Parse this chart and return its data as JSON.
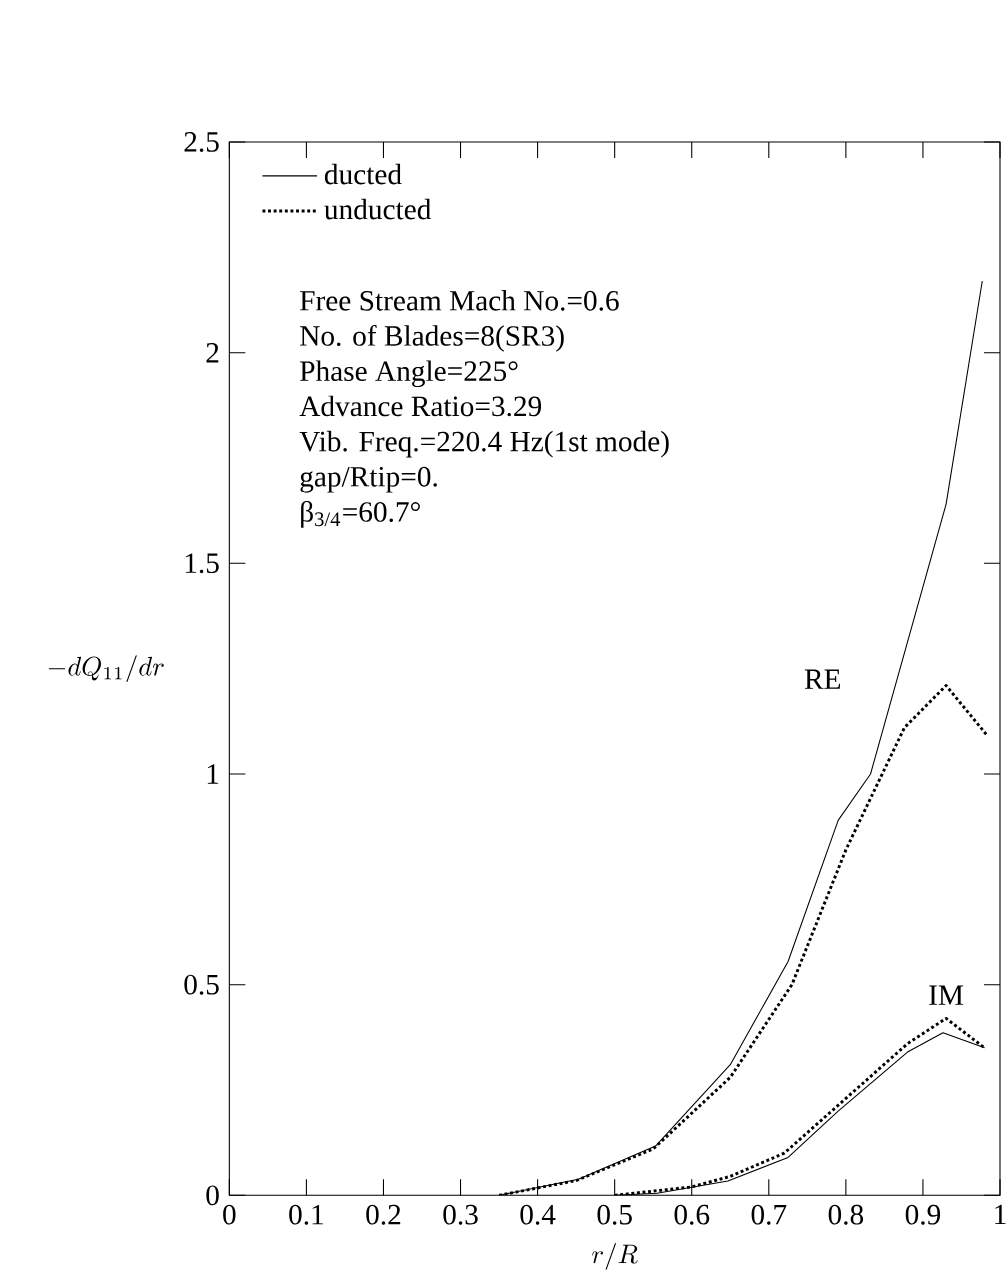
{
  "chart_data": {
    "type": "line",
    "xlabel": "r/R",
    "ylabel": "-dQ_{11}/dr",
    "xlim": [
      0,
      1
    ],
    "xticks": [
      0,
      0.1,
      0.2,
      0.3,
      0.4,
      0.5,
      0.6,
      0.7,
      0.8,
      0.9,
      1
    ],
    "ylim": [
      0,
      2.5
    ],
    "yticks": [
      0,
      0.5,
      1,
      1.5,
      2,
      2.5
    ],
    "legend": "top left",
    "series": [
      {
        "name": "ducted",
        "color": "#000000",
        "line_style": "solid",
        "x": [
          0.35,
          0.453,
          0.553,
          0.65,
          0.725,
          0.79,
          0.832,
          0.93,
          0.977
        ],
        "values": [
          0,
          0.038,
          0.117,
          0.31,
          0.555,
          0.89,
          1.0,
          1.64,
          2.17
        ]
      },
      {
        "name": "unducted",
        "color": "#000000",
        "line_style": "dotted",
        "x": [
          0.35,
          0.45,
          0.55,
          0.65,
          0.73,
          0.8,
          0.876,
          0.93,
          0.984
        ],
        "values": [
          0,
          0.035,
          0.11,
          0.28,
          0.5,
          0.82,
          1.11,
          1.21,
          1.09
        ]
      },
      {
        "color": "#000000",
        "line_style": "solid",
        "x": [
          0.5,
          0.555,
          0.647,
          0.725,
          0.79,
          0.88,
          0.926,
          0.98
        ],
        "values": [
          0,
          0.005,
          0.034,
          0.09,
          0.2,
          0.34,
          0.386,
          0.35
        ]
      },
      {
        "color": "#000000",
        "line_style": "dotted",
        "x": [
          0.5,
          0.6,
          0.65,
          0.72,
          0.8,
          0.88,
          0.93,
          0.98
        ],
        "values": [
          0,
          0.02,
          0.045,
          0.1,
          0.23,
          0.36,
          0.42,
          0.35
        ]
      }
    ],
    "annotations": [
      "Free Stream Mach No.=0.6",
      "No. of Blades=8(SR3)",
      "Phase Angle=225°",
      "Advance Ratio=3.29",
      "Vib. Freq.=220.4 Hz(1st mode)",
      "gap/Rtip=0.",
      "β$_{3/4}$=60.7°",
      "RE",
      "IM"
    ]
  }
}
